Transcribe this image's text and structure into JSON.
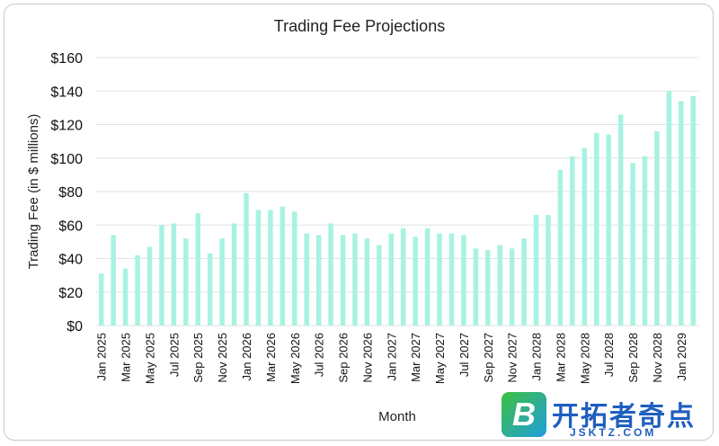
{
  "chart_data": {
    "type": "bar",
    "title": "Trading Fee Projections",
    "xlabel": "Month",
    "ylabel": "Trading Fee (in $ millions)",
    "ylim": [
      0,
      160
    ],
    "yticks": [
      "$0",
      "$20",
      "$40",
      "$60",
      "$80",
      "$100",
      "$120",
      "$140",
      "$160"
    ],
    "grid": true,
    "bar_color": "#a8f2e1",
    "categories": [
      "Jan 2025",
      "Feb 2025",
      "Mar 2025",
      "Apr 2025",
      "May 2025",
      "Jun 2025",
      "Jul 2025",
      "Aug 2025",
      "Sep 2025",
      "Oct 2025",
      "Nov 2025",
      "Dec 2025",
      "Jan 2026",
      "Feb 2026",
      "Mar 2026",
      "Apr 2026",
      "May 2026",
      "Jun 2026",
      "Jul 2026",
      "Aug 2026",
      "Sep 2026",
      "Oct 2026",
      "Nov 2026",
      "Dec 2026",
      "Jan 2027",
      "Feb 2027",
      "Mar 2027",
      "Apr 2027",
      "May 2027",
      "Jun 2027",
      "Jul 2027",
      "Aug 2027",
      "Sep 2027",
      "Oct 2027",
      "Nov 2027",
      "Dec 2027",
      "Jan 2028",
      "Feb 2028",
      "Mar 2028",
      "Apr 2028",
      "May 2028",
      "Jun 2028",
      "Jul 2028",
      "Aug 2028",
      "Sep 2028",
      "Oct 2028",
      "Nov 2028",
      "Dec 2028",
      "Jan 2029",
      "Feb 2029"
    ],
    "visible_tick_labels": [
      "Jan 2025",
      "Mar 2025",
      "May 2025",
      "Jul 2025",
      "Sep 2025",
      "Nov 2025",
      "Jan 2026",
      "Mar 2026",
      "May 2026",
      "Jul 2026",
      "Sep 2026",
      "Nov 2026",
      "Jan 2027",
      "Mar 2027",
      "May 2027",
      "Jul 2027",
      "Sep 2027",
      "Nov 2027",
      "Jan 2028",
      "Mar 2028",
      "May 2028",
      "Jul 2028",
      "Sep 2028",
      "Nov 2028",
      "Jan 2029"
    ],
    "values": [
      31,
      54,
      34,
      42,
      47,
      60,
      61,
      52,
      67,
      43,
      52,
      61,
      79,
      69,
      69,
      71,
      68,
      55,
      54,
      61,
      54,
      55,
      52,
      48,
      55,
      58,
      53,
      58,
      55,
      55,
      54,
      46,
      45,
      48,
      46,
      52,
      66,
      66,
      93,
      101,
      106,
      115,
      114,
      126,
      97,
      101,
      116,
      140,
      134,
      137
    ]
  },
  "watermark": {
    "logo_letter": "B",
    "title": "开拓者奇点",
    "url": "JSKTZ.COM"
  }
}
